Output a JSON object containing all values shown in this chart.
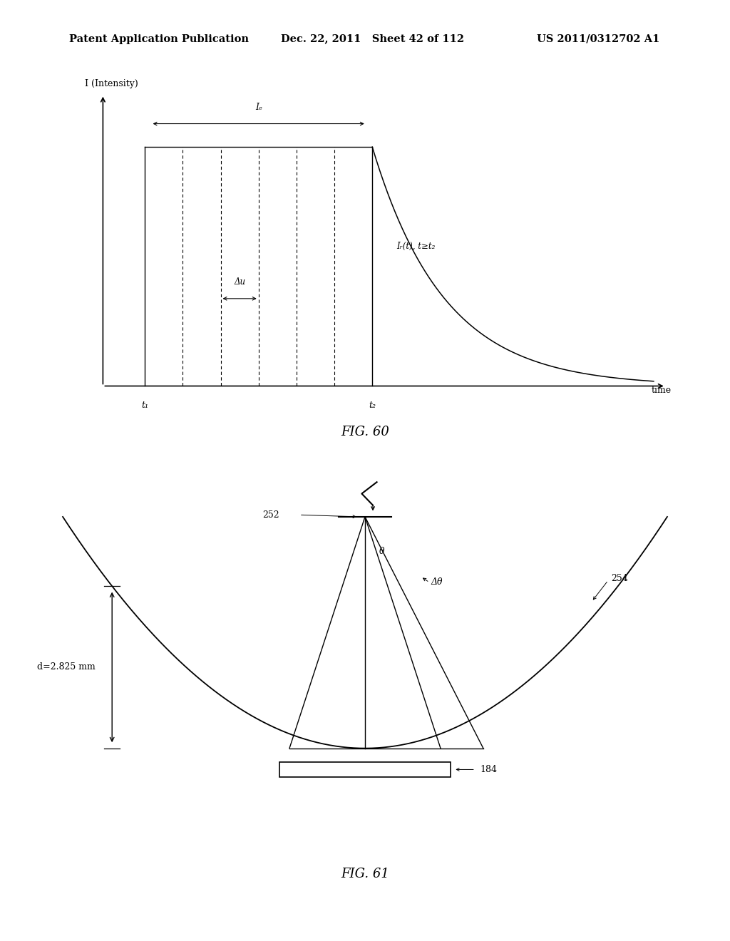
{
  "header_left": "Patent Application Publication",
  "header_mid": "Dec. 22, 2011   Sheet 42 of 112",
  "header_right": "US 2011/0312702 A1",
  "fig60_title": "FIG. 60",
  "fig61_title": "FIG. 61",
  "fig60": {
    "ylabel": "I (Intensity)",
    "xlabel": "time",
    "t1_label": "t₁",
    "t2_label": "t₂",
    "Ie_label": "Iₑ",
    "decay_label": "Iᵣ(t), t≥t₂",
    "delta_u_label": "Δu",
    "dashed_count": 5,
    "decay_tau": 0.12
  },
  "fig61": {
    "label_252": "252",
    "label_254": "254",
    "label_184": "184",
    "label_d": "d=2.825 mm",
    "label_theta": "θ",
    "label_dtheta": "Δθ"
  },
  "bg_color": "#ffffff",
  "line_color": "#000000"
}
